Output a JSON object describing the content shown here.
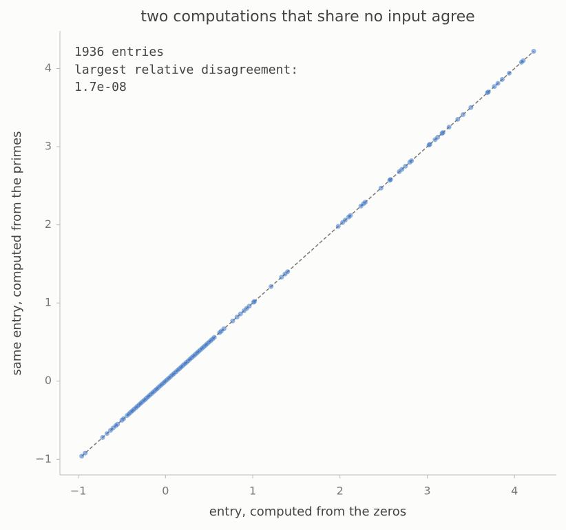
{
  "chart_data": {
    "type": "scatter",
    "title": "two computations that share no input agree",
    "x_label": "entry, computed from the zeros",
    "y_label": "same entry, computed from the primes",
    "annotation": [
      "1936 entries",
      "largest relative disagreement:",
      "1.7e-08"
    ],
    "xlim": [
      -1.21,
      4.48
    ],
    "ylim": [
      -1.2,
      4.48
    ],
    "xticks": [
      {
        "value": -1,
        "label": "−1"
      },
      0,
      1,
      2,
      3,
      4
    ],
    "yticks": [
      {
        "value": -1,
        "label": "−1"
      },
      0,
      1,
      2,
      3,
      4
    ],
    "color": "#3a75c4",
    "reference_line": {
      "color": "#777777",
      "x": [
        -0.96,
        4.22
      ],
      "y": [
        -0.96,
        4.22
      ]
    },
    "x": [
      -0.96,
      -0.92,
      -0.72,
      -0.67,
      -0.63,
      -0.6,
      -0.57,
      -0.55,
      -0.5,
      -0.48,
      -0.44,
      -0.42,
      -0.4,
      -0.38,
      -0.36,
      -0.34,
      -0.32,
      -0.3,
      -0.28,
      -0.26,
      -0.24,
      -0.22,
      -0.2,
      -0.18,
      -0.16,
      -0.14,
      -0.12,
      -0.1,
      -0.08,
      -0.06,
      -0.04,
      -0.02,
      0,
      0.02,
      0.04,
      0.06,
      0.08,
      0.1,
      0.12,
      0.14,
      0.16,
      0.18,
      0.2,
      0.22,
      0.24,
      0.26,
      0.28,
      0.3,
      0.32,
      0.34,
      0.36,
      0.38,
      0.4,
      0.42,
      0.44,
      0.46,
      0.48,
      0.5,
      0.52,
      0.54,
      0.56,
      0.62,
      0.64,
      0.67,
      0.77,
      0.82,
      0.86,
      0.9,
      0.93,
      0.96,
      1.01,
      1.02,
      1.21,
      1.33,
      1.37,
      1.4,
      1.98,
      2.03,
      2.06,
      2.1,
      2.12,
      2.24,
      2.27,
      2.29,
      2.47,
      2.57,
      2.58,
      2.68,
      2.71,
      2.75,
      2.8,
      2.82,
      3.02,
      3.03,
      3.09,
      3.12,
      3.17,
      3.18,
      3.25,
      3.35,
      3.41,
      3.5,
      3.69,
      3.7,
      3.77,
      3.81,
      3.86,
      3.94,
      4.08,
      4.1,
      4.22
    ],
    "y": [
      -0.96,
      -0.92,
      -0.72,
      -0.67,
      -0.63,
      -0.6,
      -0.57,
      -0.55,
      -0.5,
      -0.48,
      -0.44,
      -0.42,
      -0.4,
      -0.38,
      -0.36,
      -0.34,
      -0.32,
      -0.3,
      -0.28,
      -0.26,
      -0.24,
      -0.22,
      -0.2,
      -0.18,
      -0.16,
      -0.14,
      -0.12,
      -0.1,
      -0.08,
      -0.06,
      -0.04,
      -0.02,
      0,
      0.02,
      0.04,
      0.06,
      0.08,
      0.1,
      0.12,
      0.14,
      0.16,
      0.18,
      0.2,
      0.22,
      0.24,
      0.26,
      0.28,
      0.3,
      0.32,
      0.34,
      0.36,
      0.38,
      0.4,
      0.42,
      0.44,
      0.46,
      0.48,
      0.5,
      0.52,
      0.54,
      0.56,
      0.62,
      0.64,
      0.67,
      0.77,
      0.82,
      0.86,
      0.9,
      0.93,
      0.96,
      1.01,
      1.02,
      1.21,
      1.33,
      1.37,
      1.4,
      1.98,
      2.03,
      2.06,
      2.1,
      2.12,
      2.24,
      2.27,
      2.29,
      2.47,
      2.57,
      2.58,
      2.68,
      2.71,
      2.75,
      2.8,
      2.82,
      3.02,
      3.03,
      3.09,
      3.12,
      3.17,
      3.18,
      3.25,
      3.35,
      3.41,
      3.5,
      3.69,
      3.7,
      3.77,
      3.81,
      3.86,
      3.94,
      4.08,
      4.1,
      4.22
    ]
  }
}
